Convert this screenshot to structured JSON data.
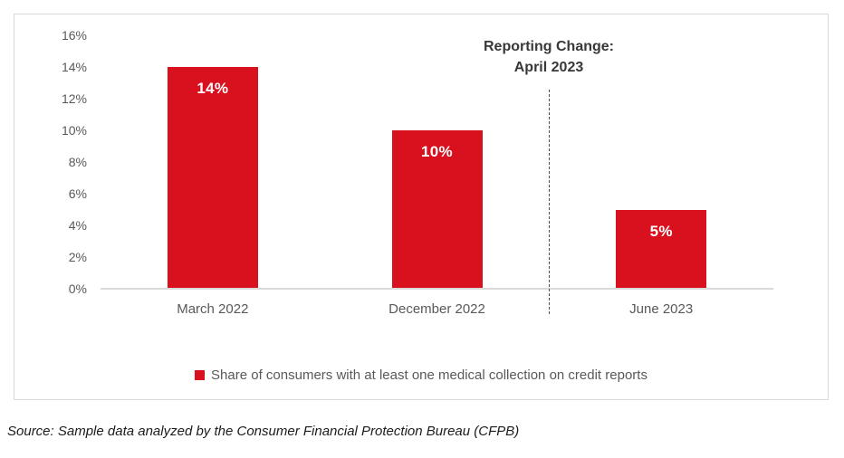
{
  "chart_data": {
    "type": "bar",
    "title": "",
    "categories": [
      "March 2022",
      "December 2022",
      "June 2023"
    ],
    "values": [
      14,
      10,
      5
    ],
    "value_labels": [
      "14%",
      "10%",
      "5%"
    ],
    "ylim": [
      0,
      16
    ],
    "ytick_step": 2,
    "yticks": [
      {
        "value": 0,
        "label": "0%"
      },
      {
        "value": 2,
        "label": "2%"
      },
      {
        "value": 4,
        "label": "4%"
      },
      {
        "value": 6,
        "label": "6%"
      },
      {
        "value": 8,
        "label": "8%"
      },
      {
        "value": 10,
        "label": "10%"
      },
      {
        "value": 12,
        "label": "12%"
      },
      {
        "value": 14,
        "label": "14%"
      },
      {
        "value": 16,
        "label": "16%"
      }
    ],
    "grid": false,
    "legend": {
      "label": "Share of consumers with at least one medical collection on credit reports",
      "position": "bottom-center",
      "swatch_color": "#D9101E"
    },
    "annotation": {
      "line1": "Reporting Change:",
      "line2": "April 2023",
      "divider_style": "dashed",
      "divider_location": "between December 2022 and June 2023"
    }
  },
  "source_note": "Source: Sample data analyzed by the Consumer Financial Protection Bureau (CFPB)",
  "colors": {
    "bar": "#D9101E",
    "bar_label_text": "#ffffff",
    "axis_text": "#595959",
    "axis_line": "#d9d9d9",
    "box_border": "#d9d9d9",
    "annotation_text": "#383838",
    "divider": "#4d4d4d",
    "source_text": "#1c1c1c",
    "background": "#ffffff"
  }
}
